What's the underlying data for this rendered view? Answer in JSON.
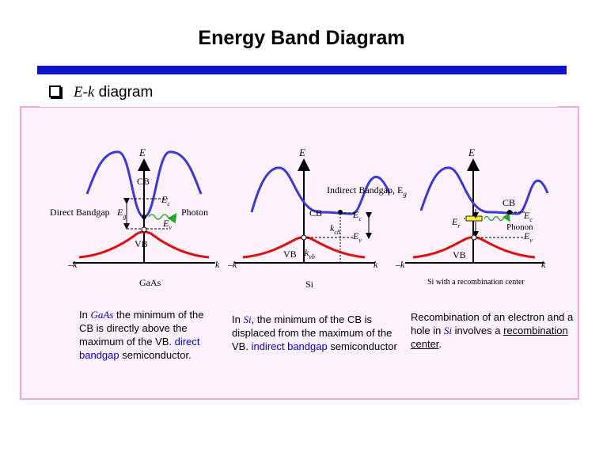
{
  "title": "Energy Band Diagram",
  "heading": {
    "var": "E-k",
    "text": "diagram"
  },
  "diagrams": {
    "gaas": {
      "axis_e": "E",
      "cb": "CB",
      "vb": "VB",
      "ec": "E",
      "ec_sub": "c",
      "ev": "E",
      "ev_sub": "v",
      "eg": "E",
      "eg_sub": "g",
      "direct_bandgap": "Direct Bandgap",
      "photon": "Photon",
      "k_neg": "–k",
      "k_pos": "k",
      "caption": "GaAs"
    },
    "si": {
      "axis_e": "E",
      "cb": "CB",
      "vb": "VB",
      "indirect_bandgap": "Indirect Bandgap, E",
      "indirect_bandgap_sub": "g",
      "ec": "E",
      "ec_sub": "c",
      "ev": "E",
      "ev_sub": "v",
      "kcb": "k",
      "kcb_sub": "cb",
      "kvb": "k",
      "kvb_sub": "vb",
      "k_neg": "–k",
      "k_pos": "k",
      "caption": "Si"
    },
    "si_rc": {
      "axis_e": "E",
      "cb": "CB",
      "vb": "VB",
      "er": "E",
      "er_sub": "r",
      "ec": "E",
      "ec_sub": "c",
      "phonon": "Phonon",
      "ev": "E",
      "ev_sub": "v",
      "k_neg": "–k",
      "k_pos": "k",
      "caption": "Si with a recombination center"
    }
  },
  "descriptions": {
    "gaas": {
      "t1": "In ",
      "t2": "GaAs",
      "t3": " the minimum of the CB is directly above the maximum of the VB. ",
      "t4": "direct bandgap",
      "t5": " semiconductor."
    },
    "si": {
      "t1": "In ",
      "t2": "Si",
      "t3": ", the minimum of the CB is displaced from the maximum of the VB. ",
      "t4": "indirect bandgap",
      "t5": " semiconductor"
    },
    "recomb": {
      "t1": "Recombination of an electron and a hole in ",
      "t2": "Si",
      "t3": " involves a ",
      "t4": "recombination center",
      "t5": "."
    }
  },
  "colors": {
    "title_bar": "#0e15c8",
    "cb_curve": "#3a3ad4",
    "vb_curve": "#dd1111",
    "photon": "#22aa22",
    "panel_bg": "#fdf2fb",
    "panel_border": "#f3a6cf",
    "emphasis_text": "#0000cc"
  }
}
